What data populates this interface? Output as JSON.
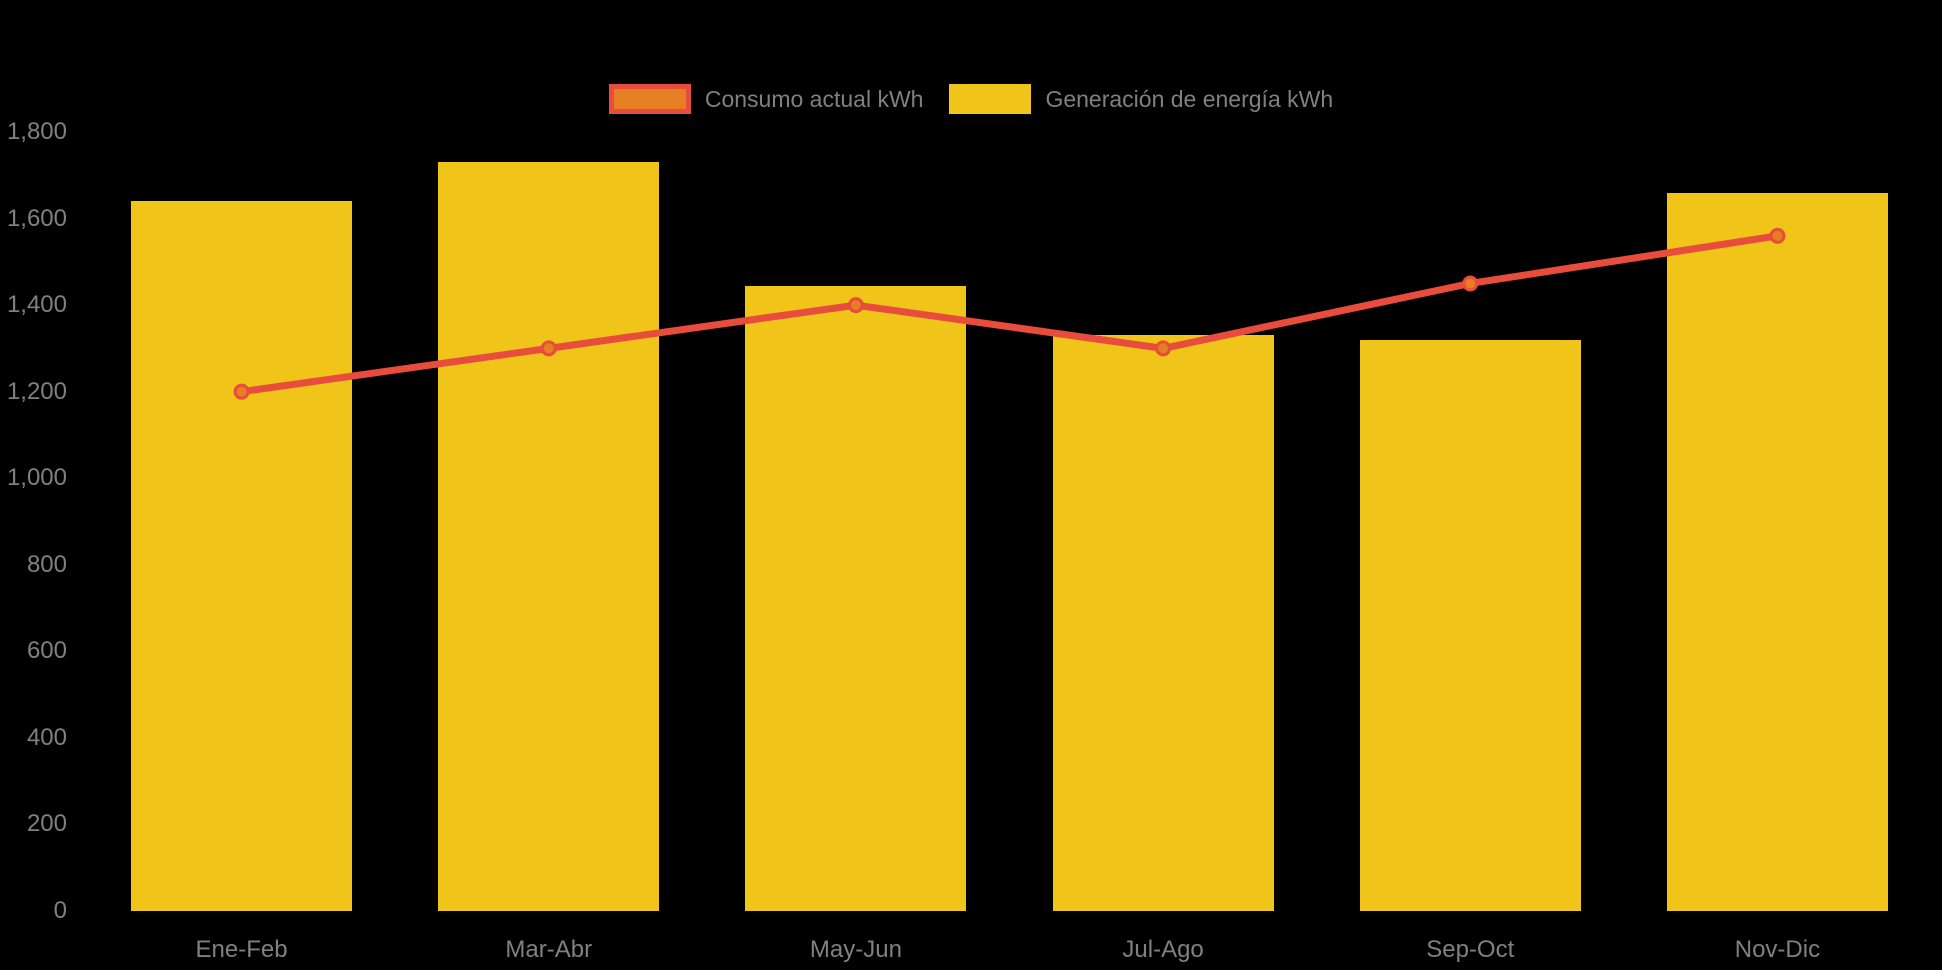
{
  "chart_data": {
    "type": "combo",
    "title": "",
    "xlabel": "",
    "ylabel": "",
    "categories": [
      "Ene-Feb",
      "Mar-Abr",
      "May-Jun",
      "Jul-Ago",
      "Sep-Oct",
      "Nov-Dic"
    ],
    "series": [
      {
        "name": "Consumo actual kWh",
        "type": "line",
        "values": [
          1200,
          1300,
          1400,
          1300,
          1450,
          1560
        ],
        "line_color": "#E74C3C",
        "marker_fill": "#E67E22",
        "marker_stroke": "#E74C3C"
      },
      {
        "name": "Generación de energía kWh",
        "type": "bar",
        "values": [
          1640,
          1730,
          1445,
          1330,
          1320,
          1660
        ],
        "color": "#F0C419"
      }
    ],
    "ylim": [
      0,
      1800
    ],
    "y_ticks": [
      0,
      200,
      400,
      600,
      800,
      1000,
      1200,
      1400,
      1600,
      1800
    ],
    "y_tick_labels": [
      "0",
      "200",
      "400",
      "600",
      "800",
      "1,000",
      "1,200",
      "1,400",
      "1,600",
      "1,800"
    ],
    "grid": false,
    "legend_position": "top-center",
    "background_color": "#000000",
    "label_color": "#808080"
  }
}
